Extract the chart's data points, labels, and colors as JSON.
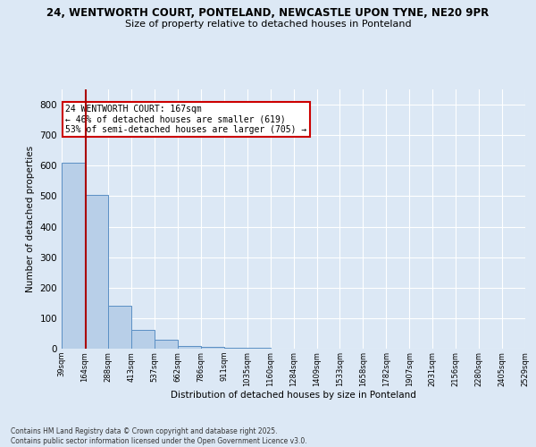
{
  "title_line1": "24, WENTWORTH COURT, PONTELAND, NEWCASTLE UPON TYNE, NE20 9PR",
  "title_line2": "Size of property relative to detached houses in Ponteland",
  "xlabel": "Distribution of detached houses by size in Ponteland",
  "ylabel": "Number of detached properties",
  "bar_edges": [
    39,
    164,
    288,
    413,
    537,
    662,
    786,
    911,
    1035,
    1160,
    1284,
    1409,
    1533,
    1658,
    1782,
    1907,
    2031,
    2156,
    2280,
    2405,
    2529
  ],
  "bar_heights": [
    610,
    505,
    142,
    62,
    28,
    10,
    5,
    3,
    2,
    1,
    1,
    1,
    0,
    0,
    0,
    0,
    0,
    0,
    0,
    0
  ],
  "bar_color": "#b8cfe8",
  "bar_edge_color": "#5a8fc4",
  "property_line_x": 167,
  "property_line_color": "#aa0000",
  "annotation_text": "24 WENTWORTH COURT: 167sqm\n← 46% of detached houses are smaller (619)\n53% of semi-detached houses are larger (705) →",
  "annotation_box_color": "#ffffff",
  "annotation_box_edge_color": "#cc0000",
  "background_color": "#dce8f5",
  "plot_bg_color": "#dce8f5",
  "footer_text": "Contains HM Land Registry data © Crown copyright and database right 2025.\nContains public sector information licensed under the Open Government Licence v3.0.",
  "ylim": [
    0,
    850
  ],
  "tick_labels": [
    "39sqm",
    "164sqm",
    "288sqm",
    "413sqm",
    "537sqm",
    "662sqm",
    "786sqm",
    "911sqm",
    "1035sqm",
    "1160sqm",
    "1284sqm",
    "1409sqm",
    "1533sqm",
    "1658sqm",
    "1782sqm",
    "1907sqm",
    "2031sqm",
    "2156sqm",
    "2280sqm",
    "2405sqm",
    "2529sqm"
  ]
}
